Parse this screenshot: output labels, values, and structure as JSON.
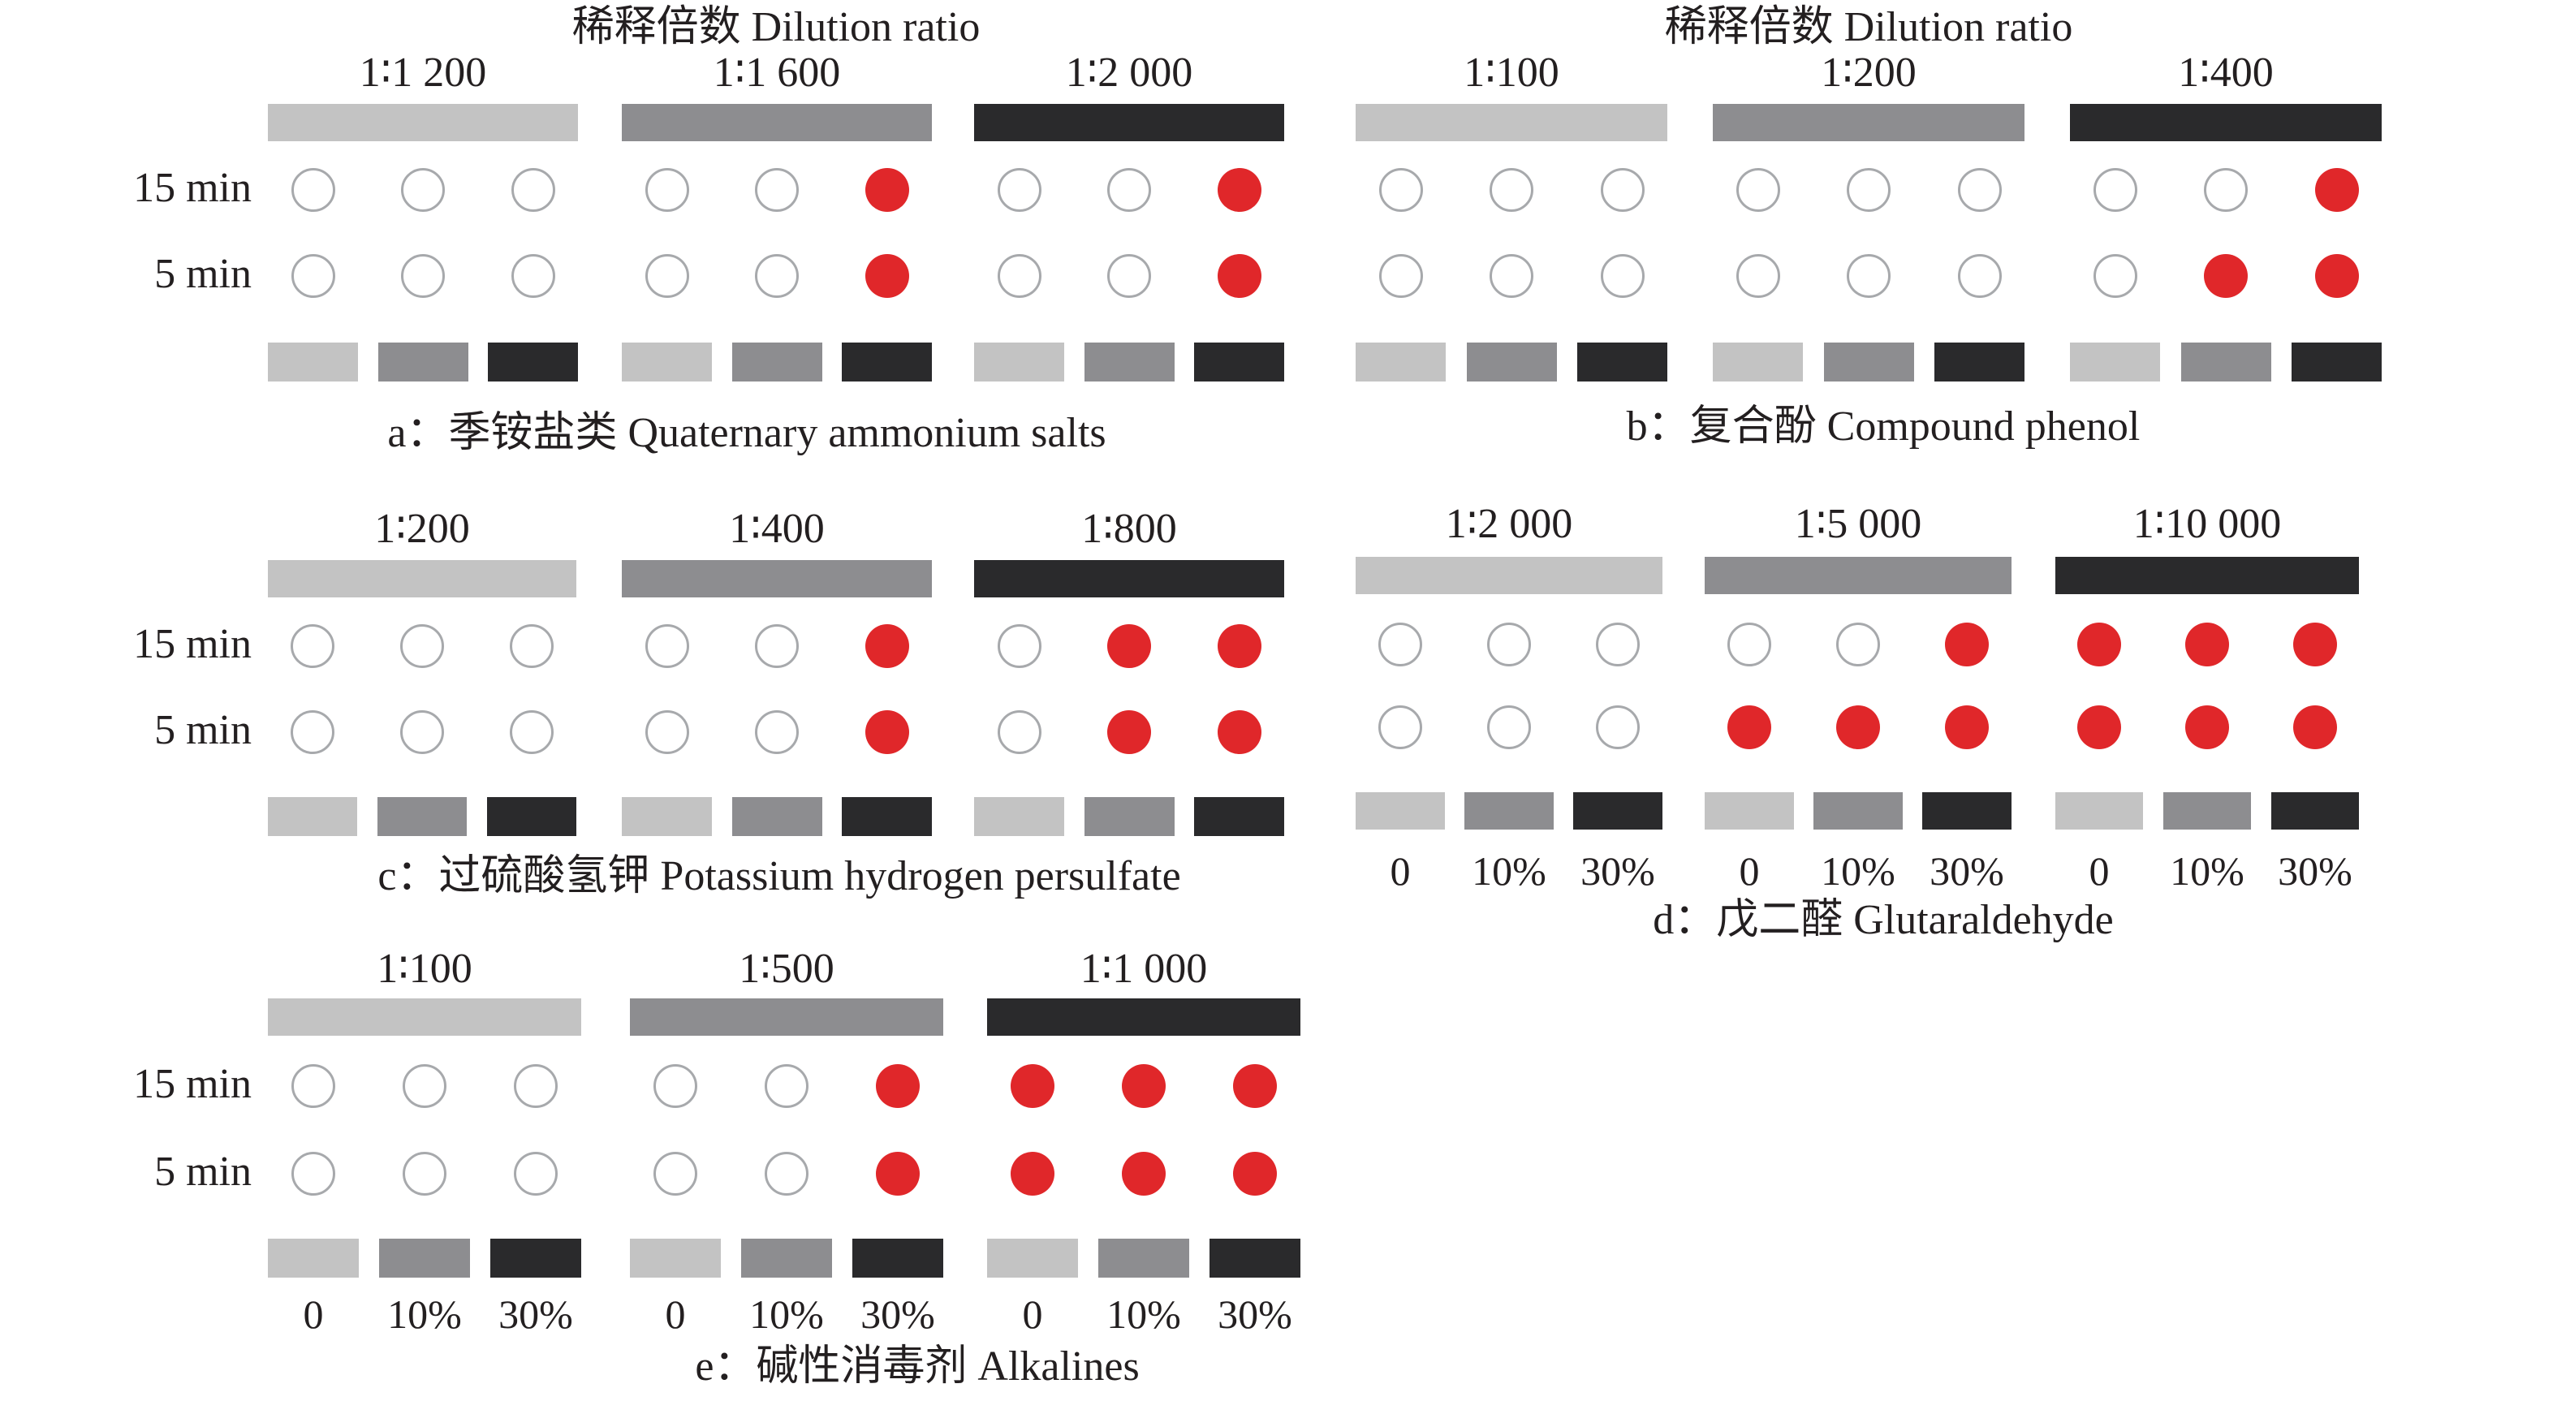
{
  "header_label": "稀释倍数 Dilution ratio",
  "time_labels": [
    "15 min",
    "5 min"
  ],
  "concentration_labels": [
    "0",
    "10%",
    "30%"
  ],
  "shades": [
    "#c3c3c3",
    "#8d8d90",
    "#2a2a2c"
  ],
  "positive_color": "#e0272a",
  "panels": [
    {
      "caption": "a：季铵盐类 Quaternary ammonium salts",
      "header": "稀释倍数 Dilution ratio",
      "ratios": [
        "1∶1 200",
        "1∶1 600",
        "1∶2 000"
      ],
      "results": {
        "15 min": [
          [
            0,
            0,
            0
          ],
          [
            0,
            0,
            1
          ],
          [
            0,
            0,
            1
          ]
        ],
        "5 min": [
          [
            0,
            0,
            0
          ],
          [
            0,
            0,
            1
          ],
          [
            0,
            0,
            1
          ]
        ]
      }
    },
    {
      "caption": "b：复合酚 Compound phenol",
      "header": "稀释倍数 Dilution ratio",
      "ratios": [
        "1∶100",
        "1∶200",
        "1∶400"
      ],
      "results": {
        "15 min": [
          [
            0,
            0,
            0
          ],
          [
            0,
            0,
            0
          ],
          [
            0,
            0,
            1
          ]
        ],
        "5 min": [
          [
            0,
            0,
            0
          ],
          [
            0,
            0,
            0
          ],
          [
            0,
            1,
            1
          ]
        ]
      }
    },
    {
      "caption": "c：过硫酸氢钾 Potassium hydrogen persulfate",
      "ratios": [
        "1∶200",
        "1∶400",
        "1∶800"
      ],
      "results": {
        "15 min": [
          [
            0,
            0,
            0
          ],
          [
            0,
            0,
            1
          ],
          [
            0,
            1,
            1
          ]
        ],
        "5 min": [
          [
            0,
            0,
            0
          ],
          [
            0,
            0,
            1
          ],
          [
            0,
            1,
            1
          ]
        ]
      }
    },
    {
      "caption": "d：戊二醛 Glutaraldehyde",
      "ratios": [
        "1∶2 000",
        "1∶5 000",
        "1∶10 000"
      ],
      "results": {
        "15 min": [
          [
            0,
            0,
            0
          ],
          [
            0,
            0,
            1
          ],
          [
            1,
            1,
            1
          ]
        ],
        "5 min": [
          [
            0,
            0,
            0
          ],
          [
            1,
            1,
            1
          ],
          [
            1,
            1,
            1
          ]
        ]
      }
    },
    {
      "caption": "e：碱性消毒剂 Alkalines",
      "ratios": [
        "1∶100",
        "1∶500",
        "1∶1 000"
      ],
      "results": {
        "15 min": [
          [
            0,
            0,
            0
          ],
          [
            0,
            0,
            1
          ],
          [
            1,
            1,
            1
          ]
        ],
        "5 min": [
          [
            0,
            0,
            0
          ],
          [
            0,
            0,
            1
          ],
          [
            1,
            1,
            1
          ]
        ]
      }
    }
  ]
}
